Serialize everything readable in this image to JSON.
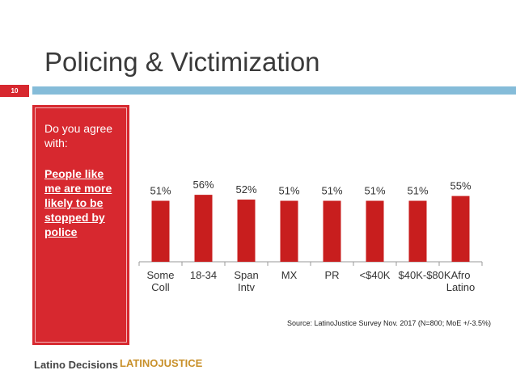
{
  "slide": {
    "title": "Policing & Victimization",
    "number": "10",
    "question": "Do you agree with:",
    "statement": "People like me are more likely to be stopped by police",
    "source": "Source: LatinoJustice Survey Nov. 2017 (N=800; MoE +/-3.5%)",
    "logos": [
      "Latino Decisions",
      "LATINOJUSTICE"
    ]
  },
  "chart_data": {
    "type": "bar",
    "categories": [
      "Some Coll",
      "18-34",
      "Span Intv",
      "MX",
      "PR",
      "<$40K",
      "$40K-$80K",
      "Afro Latino"
    ],
    "values": [
      51,
      56,
      52,
      51,
      51,
      51,
      51,
      55
    ],
    "value_labels": [
      "51%",
      "56%",
      "52%",
      "51%",
      "51%",
      "51%",
      "51%",
      "55%"
    ],
    "color": "#c81e1e"
  }
}
